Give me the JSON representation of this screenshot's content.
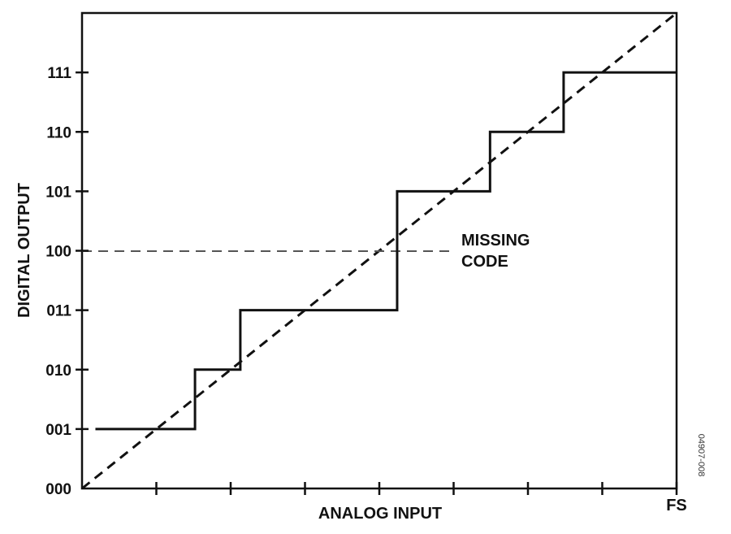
{
  "figure": {
    "x_axis_label": "ANALOG INPUT",
    "y_axis_label": "DIGITAL OUTPUT",
    "x_end_label": "FS",
    "y_tick_labels": [
      "000",
      "001",
      "010",
      "011",
      "100",
      "101",
      "110",
      "111"
    ],
    "annotation": {
      "line1": "MISSING",
      "line2": "CODE"
    },
    "figure_id": "04907-008",
    "missing_code": "100",
    "x_ticks": [
      1,
      2,
      3,
      4,
      5,
      6,
      7,
      8
    ],
    "transfer_steps": [
      {
        "code": 1,
        "x_start": 0.18,
        "x_end": 1.52
      },
      {
        "code": 2,
        "x_start": 1.52,
        "x_end": 2.13
      },
      {
        "code": 3,
        "x_start": 2.13,
        "x_end": 4.24
      },
      {
        "code": 5,
        "x_start": 4.24,
        "x_end": 5.49
      },
      {
        "code": 6,
        "x_start": 5.49,
        "x_end": 6.48
      },
      {
        "code": 7,
        "x_start": 6.48,
        "x_end": 8.0
      }
    ]
  }
}
